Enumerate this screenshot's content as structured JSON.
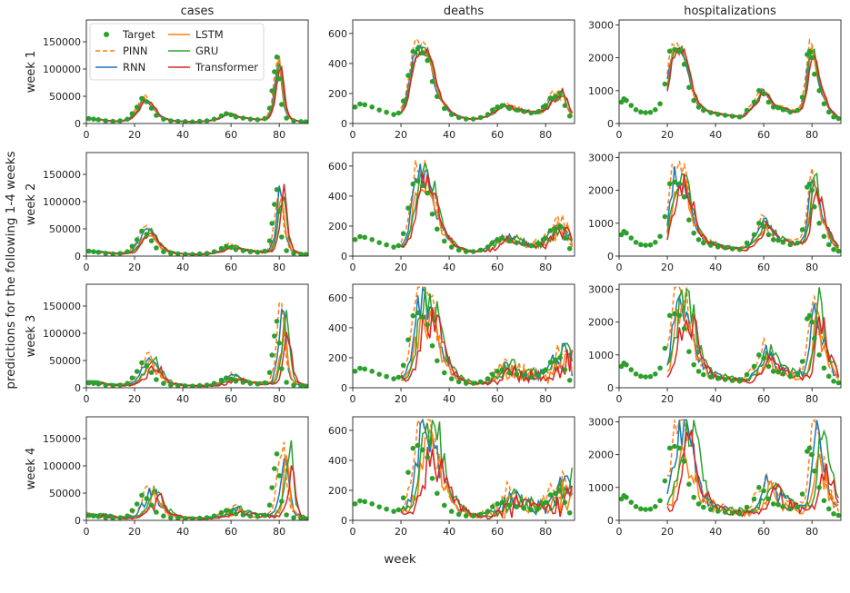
{
  "figure": {
    "xlabel": "week",
    "ylabel": "predictions for the following 1-4 weeks",
    "columns": [
      "cases",
      "deaths",
      "hospitalizations"
    ],
    "rows": [
      "week 1",
      "week 2",
      "week 3",
      "week 4"
    ]
  },
  "legend": [
    {
      "name": "Target",
      "color": "#2ca02c",
      "style": "dot"
    },
    {
      "name": "PINN",
      "color": "#ff7f0e",
      "style": "dashed"
    },
    {
      "name": "RNN",
      "color": "#1f77b4",
      "style": "solid"
    },
    {
      "name": "LSTM",
      "color": "#ff7f0e",
      "style": "solid"
    },
    {
      "name": "GRU",
      "color": "#2ca02c",
      "style": "solid"
    },
    {
      "name": "Transformer",
      "color": "#d62728",
      "style": "solid"
    }
  ],
  "chart_data": {
    "type": "line",
    "x_range": [
      0,
      92
    ],
    "x_ticks": [
      0,
      20,
      40,
      60,
      80
    ],
    "panels_y": {
      "cases": {
        "ylim": [
          0,
          190000
        ],
        "ticks": [
          0,
          50000,
          100000,
          150000
        ]
      },
      "deaths": {
        "ylim": [
          0,
          690
        ],
        "ticks": [
          0,
          200,
          400,
          600
        ]
      },
      "hospitalizations": {
        "ylim": [
          0,
          3150
        ],
        "ticks": [
          0,
          1000,
          2000,
          3000
        ]
      }
    },
    "targets": {
      "cases": {
        "x": [
          1,
          3,
          5,
          8,
          11,
          14,
          17,
          19,
          21,
          23,
          25,
          27,
          29,
          32,
          35,
          38,
          41,
          44,
          47,
          50,
          53,
          56,
          58,
          60,
          62,
          65,
          68,
          71,
          74,
          76,
          77,
          78,
          79,
          80,
          81,
          83,
          86,
          89,
          91
        ],
        "y": [
          9000,
          8000,
          7000,
          5000,
          4000,
          5000,
          8000,
          18000,
          30000,
          46000,
          40000,
          28000,
          15000,
          8000,
          5000,
          4000,
          3500,
          3000,
          4000,
          5000,
          8000,
          14000,
          18000,
          16000,
          12000,
          10000,
          8000,
          7000,
          9000,
          28000,
          60000,
          95000,
          122000,
          82000,
          35000,
          10000,
          5000,
          3500,
          3000
        ]
      },
      "deaths": {
        "x": [
          1,
          3,
          5,
          8,
          11,
          14,
          17,
          19,
          21,
          23,
          25,
          27,
          29,
          31,
          33,
          35,
          38,
          41,
          44,
          47,
          50,
          53,
          56,
          58,
          60,
          62,
          65,
          68,
          71,
          74,
          77,
          79,
          80,
          82,
          84,
          86,
          88,
          90
        ],
        "y": [
          110,
          130,
          125,
          110,
          90,
          75,
          60,
          70,
          150,
          320,
          480,
          500,
          470,
          420,
          280,
          180,
          100,
          60,
          40,
          30,
          30,
          40,
          60,
          90,
          110,
          120,
          100,
          90,
          80,
          70,
          80,
          110,
          120,
          170,
          180,
          200,
          120,
          50
        ]
      },
      "hospitalizations": {
        "x": [
          1,
          2,
          3,
          5,
          7,
          9,
          11,
          13,
          15,
          17,
          19,
          21,
          23,
          25,
          27,
          29,
          31,
          33,
          35,
          38,
          41,
          44,
          47,
          50,
          53,
          56,
          58,
          60,
          62,
          64,
          66,
          68,
          71,
          74,
          76,
          78,
          79,
          80,
          81,
          83,
          85,
          87,
          89,
          91
        ],
        "y": [
          650,
          750,
          700,
          550,
          420,
          350,
          330,
          340,
          420,
          600,
          1200,
          2200,
          2250,
          2200,
          1800,
          1100,
          700,
          500,
          400,
          330,
          280,
          250,
          220,
          200,
          400,
          650,
          1000,
          900,
          650,
          500,
          480,
          420,
          350,
          400,
          800,
          2100,
          2200,
          2000,
          1500,
          1000,
          600,
          350,
          200,
          150
        ]
      }
    },
    "series": {
      "cases": [
        {
          "name": "PINN",
          "y": [
            0,
            0,
            0,
            3000,
            3000,
            5000,
            35000,
            8000,
            3000,
            2000,
            18000,
            8000,
            4000,
            8000,
            150000,
            2000
          ],
          "x": [
            0,
            4,
            8,
            12,
            16,
            20,
            24,
            28,
            34,
            40,
            56,
            64,
            70,
            76,
            79,
            86
          ]
        }
      ]
    }
  }
}
